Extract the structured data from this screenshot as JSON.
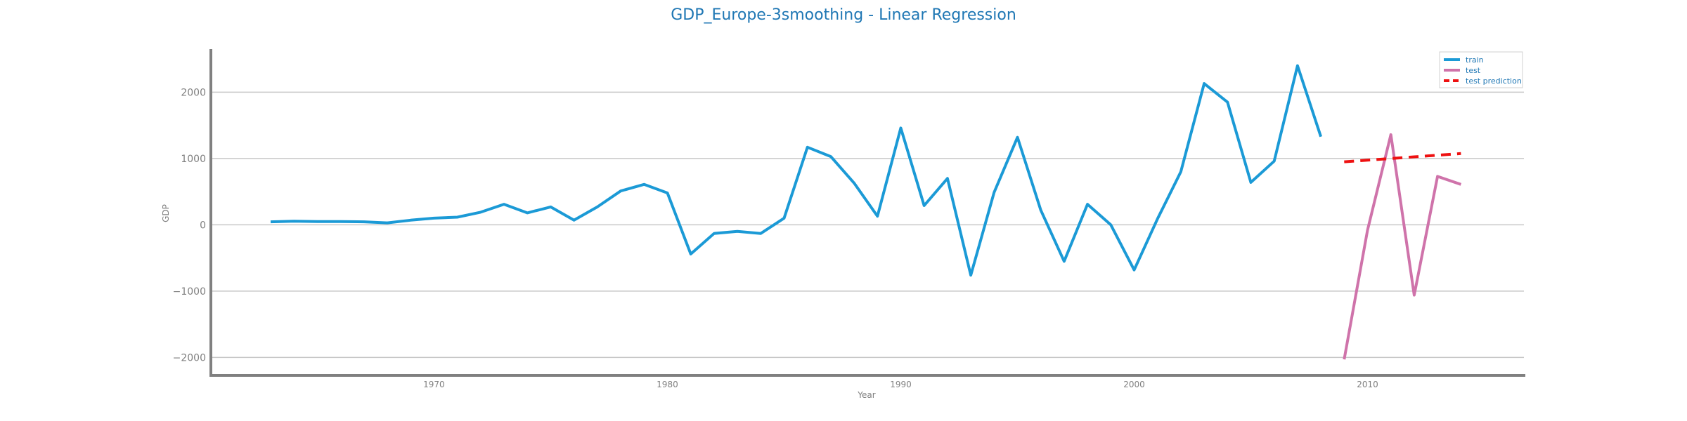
{
  "colors": {
    "title": "#1f77b4",
    "train": "#1b9ad6",
    "test": "#cf73aa",
    "prediction": "#ee1111",
    "grid": "#c8c8c8",
    "axis": "#808080",
    "tick": "#7f7f7f"
  },
  "chart_data": {
    "type": "line",
    "title": "GDP_Europe-3smoothing - Linear Regression",
    "xlabel": "Year",
    "ylabel": "GDP",
    "xlim": [
      1960.5,
      2016.7
    ],
    "ylim": [
      -2250,
      2650
    ],
    "xticks": [
      1970,
      1980,
      1990,
      2000,
      2010
    ],
    "yticks": [
      2000,
      1000,
      0,
      -1000,
      -2000
    ],
    "ytick_labels": [
      "2000",
      "1000",
      "0",
      "−1000",
      "−2000"
    ],
    "grid": "horizontal",
    "legend": "top-right",
    "series": [
      {
        "name": "train",
        "style": "solid",
        "x": [
          1963,
          1964,
          1965,
          1966,
          1967,
          1968,
          1969,
          1970,
          1971,
          1972,
          1973,
          1974,
          1975,
          1976,
          1977,
          1978,
          1979,
          1980,
          1981,
          1982,
          1983,
          1984,
          1985,
          1986,
          1987,
          1988,
          1989,
          1990,
          1991,
          1992,
          1993,
          1994,
          1995,
          1996,
          1997,
          1998,
          1999,
          2000,
          2001,
          2002,
          2003,
          2004,
          2005,
          2006,
          2007,
          2008
        ],
        "y": [
          45,
          55,
          50,
          50,
          45,
          30,
          70,
          100,
          115,
          190,
          310,
          180,
          270,
          70,
          270,
          510,
          610,
          480,
          -440,
          -130,
          -100,
          -130,
          100,
          1170,
          1030,
          630,
          130,
          1460,
          290,
          700,
          -760,
          490,
          1320,
          220,
          -550,
          310,
          0,
          -680,
          90,
          800,
          2130,
          1850,
          640,
          960,
          2400,
          1330
        ]
      },
      {
        "name": "test",
        "style": "solid",
        "x": [
          2009,
          2010,
          2011,
          2012,
          2013,
          2014
        ],
        "y": [
          -2030,
          -80,
          1360,
          -1060,
          730,
          610
        ]
      },
      {
        "name": "test prediction",
        "style": "dashed",
        "x": [
          2009,
          2010,
          2011,
          2012,
          2013,
          2014
        ],
        "y": [
          950,
          975,
          1000,
          1025,
          1050,
          1075
        ]
      }
    ]
  }
}
